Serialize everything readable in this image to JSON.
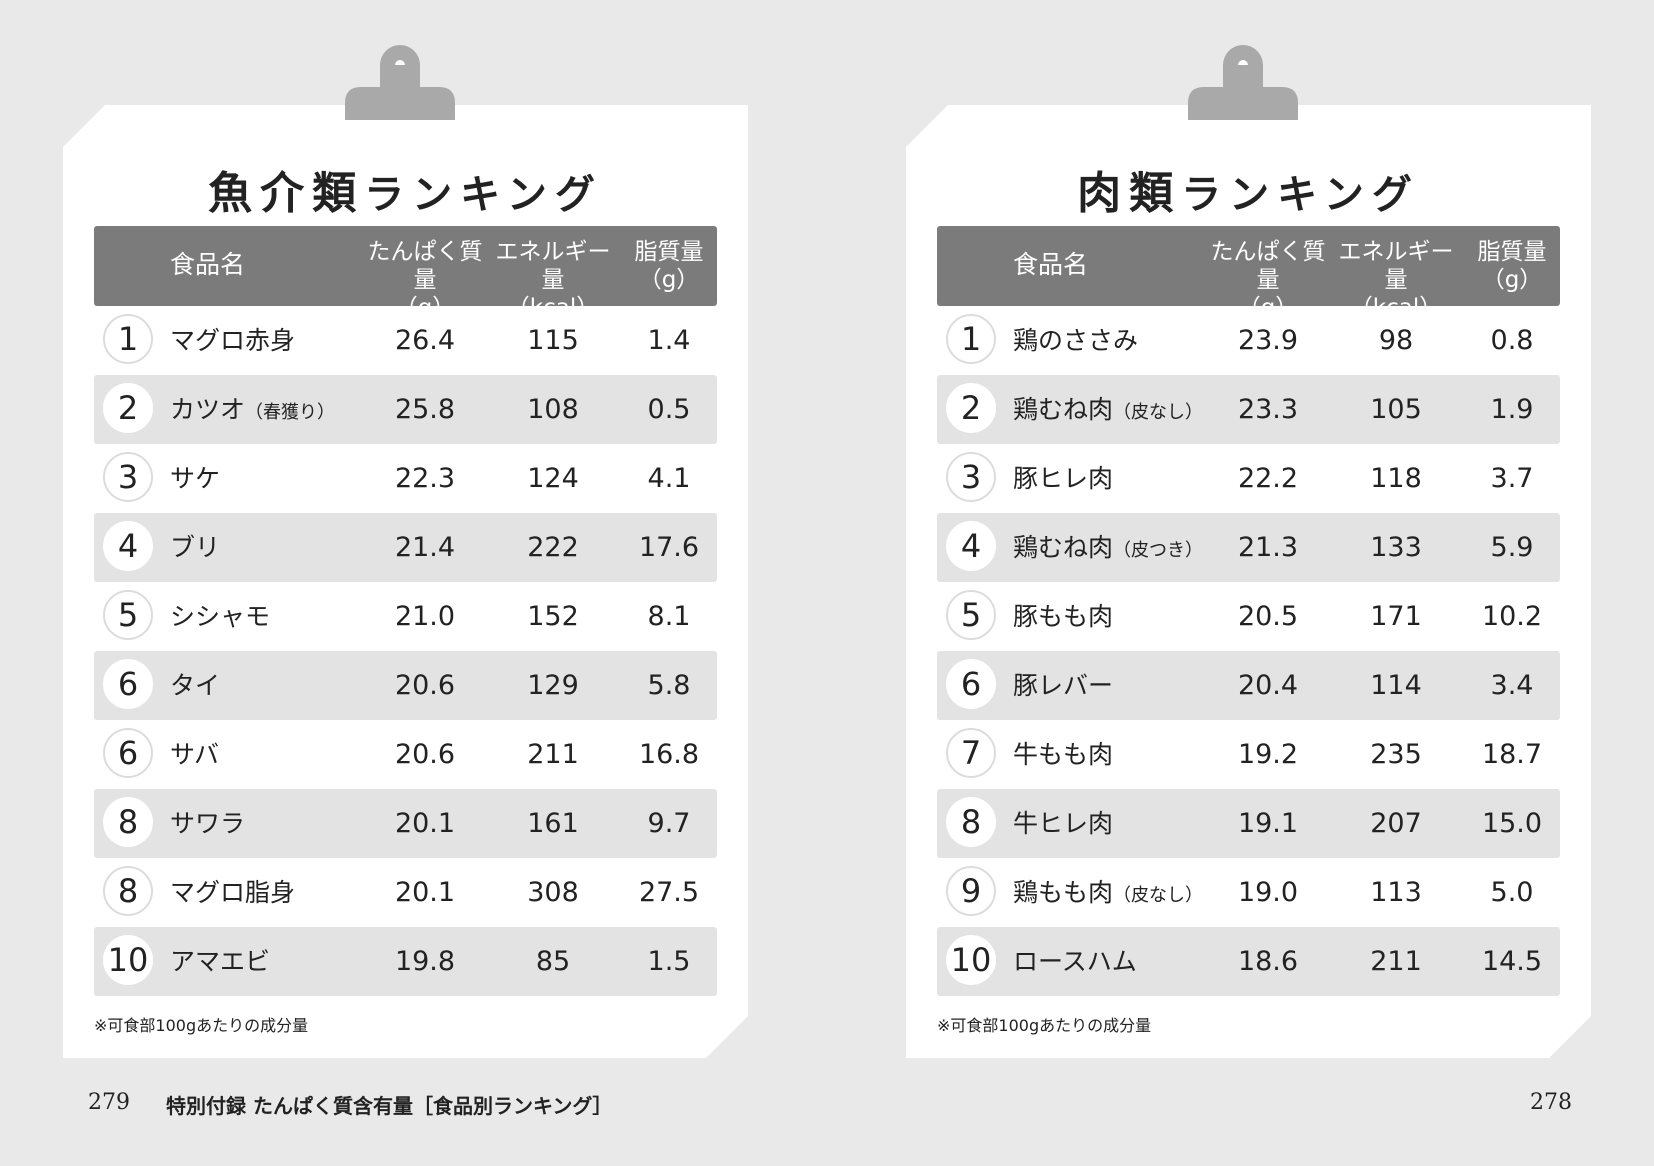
{
  "columns": {
    "name": "食品名",
    "protein_label": "たんぱく質量",
    "protein_unit": "（g）",
    "energy_label": "エネルギー量",
    "energy_unit": "（kcal）",
    "fat_label": "脂質量",
    "fat_unit": "（g）"
  },
  "left": {
    "title_a": "魚介類",
    "title_b": "ランキング",
    "footnote": "※可食部100gあたりの成分量",
    "rows": [
      {
        "rank": "1",
        "name": "マグロ赤身",
        "note": "",
        "protein": "26.4",
        "energy": "115",
        "fat": "1.4"
      },
      {
        "rank": "2",
        "name": "カツオ",
        "note": "（春獲り）",
        "protein": "25.8",
        "energy": "108",
        "fat": "0.5"
      },
      {
        "rank": "3",
        "name": "サケ",
        "note": "",
        "protein": "22.3",
        "energy": "124",
        "fat": "4.1"
      },
      {
        "rank": "4",
        "name": "ブリ",
        "note": "",
        "protein": "21.4",
        "energy": "222",
        "fat": "17.6"
      },
      {
        "rank": "5",
        "name": "シシャモ",
        "note": "",
        "protein": "21.0",
        "energy": "152",
        "fat": "8.1"
      },
      {
        "rank": "6",
        "name": "タイ",
        "note": "",
        "protein": "20.6",
        "energy": "129",
        "fat": "5.8"
      },
      {
        "rank": "6",
        "name": "サバ",
        "note": "",
        "protein": "20.6",
        "energy": "211",
        "fat": "16.8"
      },
      {
        "rank": "8",
        "name": "サワラ",
        "note": "",
        "protein": "20.1",
        "energy": "161",
        "fat": "9.7"
      },
      {
        "rank": "8",
        "name": "マグロ脂身",
        "note": "",
        "protein": "20.1",
        "energy": "308",
        "fat": "27.5"
      },
      {
        "rank": "10",
        "name": "アマエビ",
        "note": "",
        "protein": "19.8",
        "energy": "85",
        "fat": "1.5"
      }
    ]
  },
  "right": {
    "title_a": "肉類",
    "title_b": "ランキング",
    "footnote": "※可食部100gあたりの成分量",
    "rows": [
      {
        "rank": "1",
        "name": "鶏のささみ",
        "note": "",
        "protein": "23.9",
        "energy": "98",
        "fat": "0.8"
      },
      {
        "rank": "2",
        "name": "鶏むね肉",
        "note": "（皮なし）",
        "protein": "23.3",
        "energy": "105",
        "fat": "1.9"
      },
      {
        "rank": "3",
        "name": "豚ヒレ肉",
        "note": "",
        "protein": "22.2",
        "energy": "118",
        "fat": "3.7"
      },
      {
        "rank": "4",
        "name": "鶏むね肉",
        "note": "（皮つき）",
        "protein": "21.3",
        "energy": "133",
        "fat": "5.9"
      },
      {
        "rank": "5",
        "name": "豚もも肉",
        "note": "",
        "protein": "20.5",
        "energy": "171",
        "fat": "10.2"
      },
      {
        "rank": "6",
        "name": "豚レバー",
        "note": "",
        "protein": "20.4",
        "energy": "114",
        "fat": "3.4"
      },
      {
        "rank": "7",
        "name": "牛もも肉",
        "note": "",
        "protein": "19.2",
        "energy": "235",
        "fat": "18.7"
      },
      {
        "rank": "8",
        "name": "牛ヒレ肉",
        "note": "",
        "protein": "19.1",
        "energy": "207",
        "fat": "15.0"
      },
      {
        "rank": "9",
        "name": "鶏もも肉",
        "note": "（皮なし）",
        "protein": "19.0",
        "energy": "113",
        "fat": "5.0"
      },
      {
        "rank": "10",
        "name": "ロースハム",
        "note": "",
        "protein": "18.6",
        "energy": "211",
        "fat": "14.5"
      }
    ]
  },
  "footer": {
    "left_page": "279",
    "running_title": "特別付録 たんぱく質含有量［食品別ランキング］",
    "right_page": "278"
  }
}
